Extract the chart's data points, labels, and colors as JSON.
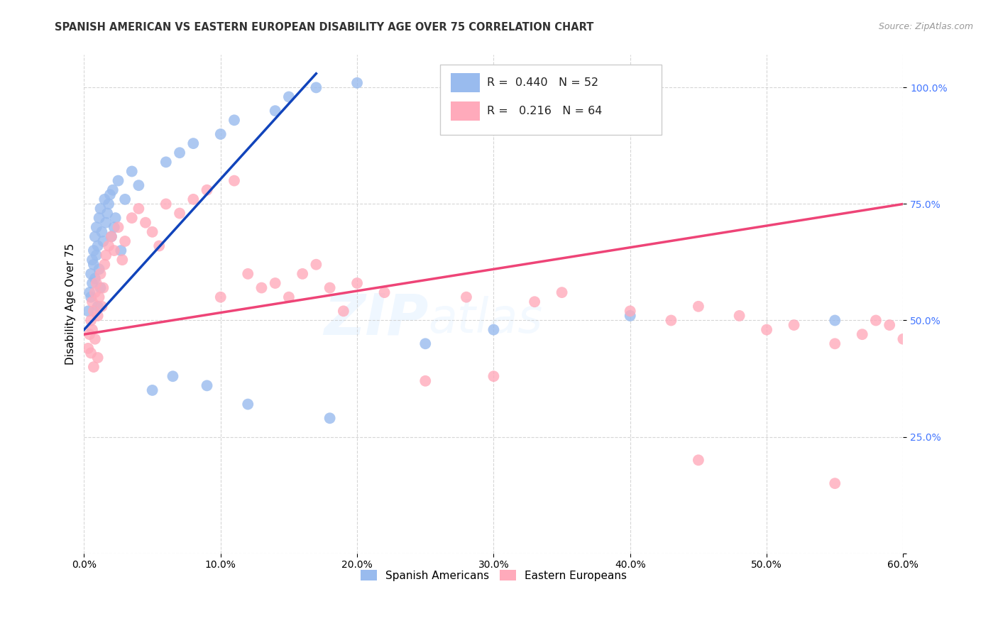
{
  "title": "SPANISH AMERICAN VS EASTERN EUROPEAN DISABILITY AGE OVER 75 CORRELATION CHART",
  "source": "Source: ZipAtlas.com",
  "ylabel": "Disability Age Over 75",
  "ytick_positions": [
    0,
    25,
    50,
    75,
    100
  ],
  "xmin": 0,
  "xmax": 60,
  "ymin": 0,
  "ymax": 107,
  "blue_R": 0.44,
  "blue_N": 52,
  "pink_R": 0.216,
  "pink_N": 64,
  "blue_color": "#99BBEE",
  "pink_color": "#FFAABB",
  "blue_line_color": "#1144BB",
  "pink_line_color": "#EE4477",
  "ytick_color": "#4477FF",
  "legend_label_blue": "Spanish Americans",
  "legend_label_pink": "Eastern Europeans",
  "watermark_zip": "ZIP",
  "watermark_atlas": "atlas",
  "blue_line_x0": 0.0,
  "blue_line_y0": 48.0,
  "blue_line_x1": 17.0,
  "blue_line_y1": 103.0,
  "pink_line_x0": 0.0,
  "pink_line_y0": 47.0,
  "pink_line_x1": 60.0,
  "pink_line_y1": 75.0,
  "blue_scatter_x": [
    0.3,
    0.4,
    0.5,
    0.5,
    0.6,
    0.6,
    0.7,
    0.7,
    0.8,
    0.8,
    0.9,
    0.9,
    1.0,
    1.0,
    1.1,
    1.1,
    1.2,
    1.2,
    1.3,
    1.4,
    1.5,
    1.6,
    1.7,
    1.8,
    1.9,
    2.0,
    2.1,
    2.2,
    2.3,
    2.5,
    2.7,
    3.0,
    3.5,
    4.0,
    5.0,
    6.0,
    6.5,
    7.0,
    8.0,
    9.0,
    10.0,
    11.0,
    12.0,
    14.0,
    15.0,
    17.0,
    18.0,
    20.0,
    25.0,
    30.0,
    40.0,
    55.0
  ],
  "blue_scatter_y": [
    52,
    56,
    60,
    55,
    63,
    58,
    65,
    62,
    68,
    59,
    70,
    64,
    66,
    53,
    72,
    61,
    74,
    57,
    69,
    67,
    76,
    71,
    73,
    75,
    77,
    68,
    78,
    70,
    72,
    80,
    65,
    76,
    82,
    79,
    35,
    84,
    38,
    86,
    88,
    36,
    90,
    93,
    32,
    95,
    98,
    100,
    29,
    101,
    45,
    48,
    51,
    50
  ],
  "pink_scatter_x": [
    0.3,
    0.4,
    0.5,
    0.5,
    0.6,
    0.6,
    0.7,
    0.7,
    0.8,
    0.8,
    0.9,
    1.0,
    1.0,
    1.1,
    1.2,
    1.3,
    1.4,
    1.5,
    1.6,
    1.8,
    2.0,
    2.2,
    2.5,
    2.8,
    3.0,
    3.5,
    4.0,
    4.5,
    5.0,
    5.5,
    6.0,
    7.0,
    8.0,
    9.0,
    10.0,
    11.0,
    12.0,
    13.0,
    14.0,
    15.0,
    16.0,
    17.0,
    18.0,
    19.0,
    20.0,
    22.0,
    25.0,
    28.0,
    30.0,
    33.0,
    35.0,
    40.0,
    43.0,
    45.0,
    48.0,
    50.0,
    52.0,
    55.0,
    57.0,
    58.0,
    59.0,
    60.0,
    45.0,
    55.0
  ],
  "pink_scatter_y": [
    44,
    47,
    50,
    43,
    54,
    48,
    52,
    40,
    56,
    46,
    58,
    51,
    42,
    55,
    60,
    53,
    57,
    62,
    64,
    66,
    68,
    65,
    70,
    63,
    67,
    72,
    74,
    71,
    69,
    66,
    75,
    73,
    76,
    78,
    55,
    80,
    60,
    57,
    58,
    55,
    60,
    62,
    57,
    52,
    58,
    56,
    37,
    55,
    38,
    54,
    56,
    52,
    50,
    53,
    51,
    48,
    49,
    45,
    47,
    50,
    49,
    46,
    20,
    15
  ]
}
